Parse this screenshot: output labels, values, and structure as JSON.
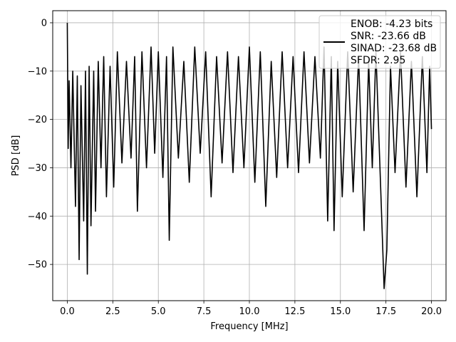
{
  "chart_data": {
    "type": "line",
    "xlabel": "Frequency [MHz]",
    "ylabel": "PSD [dB]",
    "xlim": [
      -0.8,
      20.8
    ],
    "ylim": [
      -57.5,
      2.5
    ],
    "grid": true,
    "legend_placement": "top-right",
    "x_ticks": [
      0.0,
      2.5,
      5.0,
      7.5,
      10.0,
      12.5,
      15.0,
      17.5,
      20.0
    ],
    "x_tick_labels": [
      "0.0",
      "2.5",
      "5.0",
      "7.5",
      "10.0",
      "12.5",
      "15.0",
      "17.5",
      "20.0"
    ],
    "y_ticks": [
      0,
      -10,
      -20,
      -30,
      -40,
      -50
    ],
    "y_tick_labels": [
      "0",
      "−10",
      "−20",
      "−30",
      "−40",
      "−50"
    ],
    "series": [
      {
        "color": "#000000",
        "x": [
          0.0,
          0.05,
          0.1,
          0.2,
          0.3,
          0.45,
          0.55,
          0.65,
          0.75,
          0.9,
          1.0,
          1.1,
          1.2,
          1.3,
          1.45,
          1.55,
          1.7,
          1.85,
          2.0,
          2.15,
          2.35,
          2.55,
          2.75,
          3.0,
          3.25,
          3.5,
          3.7,
          3.85,
          4.1,
          4.35,
          4.6,
          4.8,
          5.0,
          5.25,
          5.45,
          5.6,
          5.8,
          6.1,
          6.4,
          6.7,
          7.0,
          7.3,
          7.6,
          7.9,
          8.2,
          8.5,
          8.8,
          9.1,
          9.4,
          9.7,
          10.0,
          10.3,
          10.6,
          10.9,
          11.2,
          11.5,
          11.8,
          12.1,
          12.4,
          12.7,
          13.0,
          13.3,
          13.6,
          13.9,
          14.1,
          14.3,
          14.5,
          14.65,
          14.85,
          15.1,
          15.4,
          15.7,
          16.0,
          16.3,
          16.55,
          16.75,
          16.95,
          17.2,
          17.4,
          17.55,
          17.75,
          18.0,
          18.3,
          18.6,
          18.9,
          19.2,
          19.5,
          19.75,
          19.9,
          20.0
        ],
        "values": [
          0,
          -26,
          -12,
          -30,
          -10,
          -38,
          -11,
          -49,
          -13,
          -41,
          -10,
          -52,
          -9,
          -42,
          -10,
          -39,
          -8,
          -30,
          -7,
          -36,
          -9,
          -34,
          -6,
          -29,
          -8,
          -28,
          -7,
          -39,
          -6,
          -30,
          -5,
          -27,
          -6,
          -32,
          -7,
          -45,
          -5,
          -28,
          -8,
          -33,
          -5,
          -27,
          -6,
          -36,
          -7,
          -29,
          -6,
          -31,
          -7,
          -30,
          -5,
          -33,
          -6,
          -38,
          -8,
          -32,
          -6,
          -30,
          -7,
          -31,
          -6,
          -29,
          -7,
          -28,
          -5,
          -41,
          -7,
          -43,
          -8,
          -36,
          -6,
          -35,
          -7,
          -43,
          -8,
          -30,
          -6,
          -33,
          -55,
          -47,
          -9,
          -31,
          -6,
          -34,
          -8,
          -36,
          -7,
          -31,
          -9,
          -22
        ]
      }
    ],
    "legend": [
      {
        "label": "ENOB: -4.23 bits"
      },
      {
        "label": "SNR: -23.66 dB"
      },
      {
        "label": "SINAD: -23.68 dB"
      },
      {
        "label": "SFDR: 2.95"
      }
    ]
  }
}
